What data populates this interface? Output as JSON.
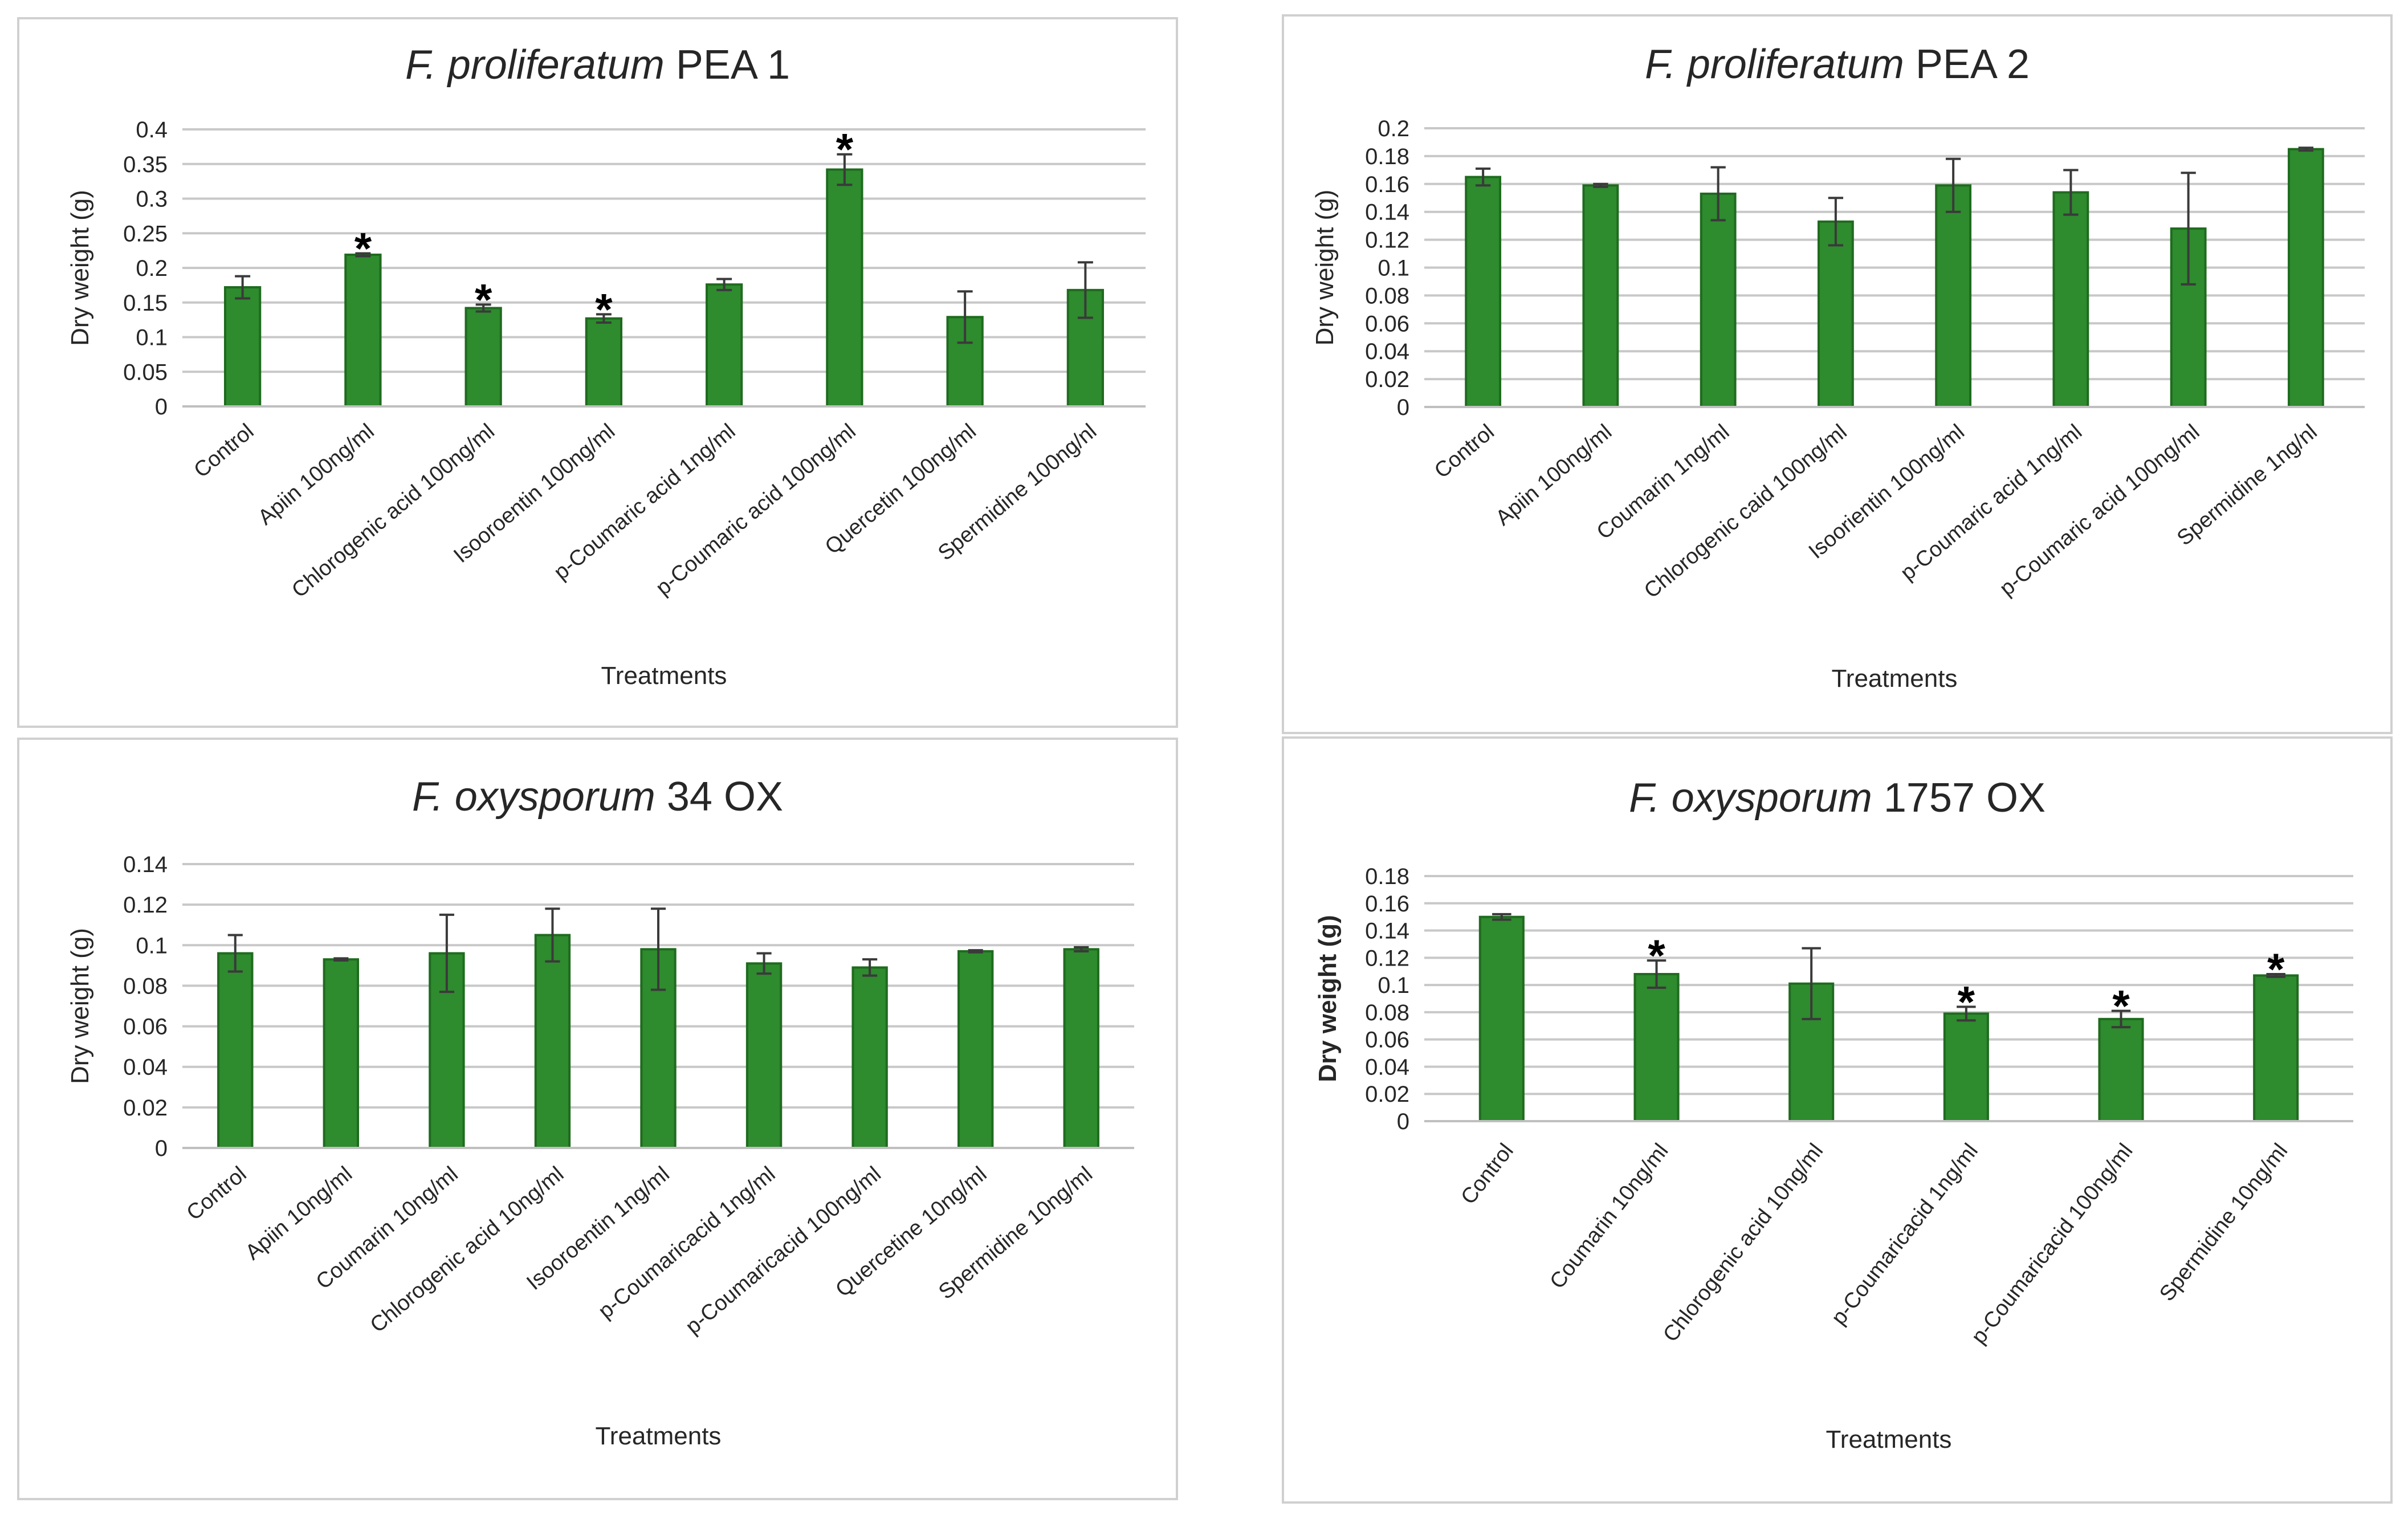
{
  "chart_data": [
    {
      "type": "bar",
      "title_italic": "F. proliferatum",
      "title_rest": "PEA 1",
      "xlabel": "Treatments",
      "ylabel": "Dry weight (g)",
      "ylim": [
        0,
        0.4
      ],
      "yticks": [
        "0",
        "0.05",
        "0.1",
        "0.15",
        "0.2",
        "0.25",
        "0.3",
        "0.35",
        "0.4"
      ],
      "grid": true,
      "bar_color": "#2e8b2e",
      "categories": [
        "Control",
        "Apiin 100ng/ml",
        "Chlorogenic acid 100ng/ml",
        "Isooroentin 100ng/ml",
        "p-Coumaric acid 1ng/ml",
        "p-Coumaric acid 100ng/ml",
        "Quercetin 100ng/ml",
        "Spermidine 100ng/nl"
      ],
      "values": [
        0.172,
        0.219,
        0.142,
        0.127,
        0.176,
        0.342,
        0.129,
        0.168
      ],
      "errors": [
        0.016,
        0.002,
        0.005,
        0.006,
        0.008,
        0.022,
        0.037,
        0.04
      ],
      "annotations": [
        "",
        "*",
        "*",
        "*",
        "",
        "*",
        "",
        ""
      ]
    },
    {
      "type": "bar",
      "title_italic": "F. proliferatum",
      "title_rest": "PEA 2",
      "xlabel": "Treatments",
      "ylabel": "Dry weight (g)",
      "ylim": [
        0,
        0.2
      ],
      "yticks": [
        "0",
        "0.02",
        "0.04",
        "0.06",
        "0.08",
        "0.1",
        "0.12",
        "0.14",
        "0.16",
        "0.18",
        "0.2"
      ],
      "grid": true,
      "bar_color": "#2e8b2e",
      "categories": [
        "Control",
        "Apiin 100ng/ml",
        "Coumarin 1ng/ml",
        "Chlorogenic caid 100ng/ml",
        "Isoorientin 100ng/ml",
        "p-Coumaric acid 1ng/ml",
        "p-Coumaric acid 100ng/ml",
        "Spermidine 1ng/nl"
      ],
      "values": [
        0.165,
        0.159,
        0.153,
        0.133,
        0.159,
        0.154,
        0.128,
        0.185
      ],
      "errors": [
        0.006,
        0.001,
        0.019,
        0.017,
        0.019,
        0.016,
        0.04,
        0.001
      ],
      "annotations": [
        "",
        "",
        "",
        "",
        "",
        "",
        "",
        ""
      ]
    },
    {
      "type": "bar",
      "title_italic": "F. oxysporum",
      "title_rest": "34 OX",
      "xlabel": "Treatments",
      "ylabel": "Dry weight (g)",
      "ylim": [
        0,
        0.14
      ],
      "yticks": [
        "0",
        "0.02",
        "0.04",
        "0.06",
        "0.08",
        "0.1",
        "0.12",
        "0.14"
      ],
      "grid": true,
      "bar_color": "#2e8b2e",
      "categories": [
        "Control",
        "Apiin 10ng/ml",
        "Coumarin 10ng/ml",
        "Chlorogenic acid 10ng/ml",
        "Isooroentin 1ng/ml",
        "p-Coumaricacid 1ng/ml",
        "p-Coumaricacid 100ng/ml",
        "Quercetine 10ng/ml",
        "Spermidine 10ng/ml"
      ],
      "values": [
        0.096,
        0.093,
        0.096,
        0.105,
        0.098,
        0.091,
        0.089,
        0.097,
        0.098
      ],
      "errors": [
        0.009,
        0.0005,
        0.019,
        0.013,
        0.02,
        0.005,
        0.004,
        0.0005,
        0.001
      ],
      "annotations": [
        "",
        "",
        "",
        "",
        "",
        "",
        "",
        "",
        ""
      ]
    },
    {
      "type": "bar",
      "title_italic": "F. oxysporum",
      "title_rest": "1757 OX",
      "xlabel": "Treatments",
      "ylabel": "Dry weight (g)",
      "ylim": [
        0,
        0.18
      ],
      "yticks": [
        "0",
        "0.02",
        "0.04",
        "0.06",
        "0.08",
        "0.1",
        "0.12",
        "0.14",
        "0.16",
        "0.18"
      ],
      "grid": true,
      "bar_color": "#2e8b2e",
      "categories": [
        "Control",
        "Coumarin 10ng/ml",
        "Chlorogenic acid 10ng/ml",
        "p-Coumaricacid 1ng/ml",
        "p-Coumaricacid 100ng/ml",
        "Spermidine 10ng/ml"
      ],
      "values": [
        0.15,
        0.108,
        0.101,
        0.079,
        0.075,
        0.107
      ],
      "errors": [
        0.002,
        0.01,
        0.026,
        0.005,
        0.006,
        0.001
      ],
      "annotations": [
        "",
        "*",
        "",
        "*",
        "*",
        "*"
      ]
    }
  ]
}
